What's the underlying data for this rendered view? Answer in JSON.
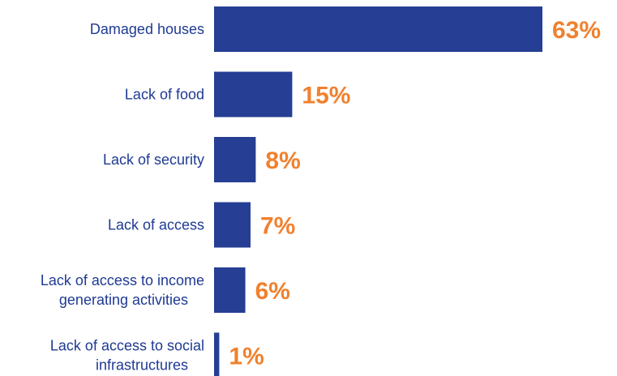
{
  "colors": {
    "bar": "#263e93",
    "value_label": "#f0812e",
    "category_label": "#1f3a93"
  },
  "chart_data": {
    "type": "bar",
    "orientation": "horizontal",
    "title": "",
    "xlabel": "",
    "ylabel": "",
    "categories": [
      [
        "Damaged houses"
      ],
      [
        "Lack of food"
      ],
      [
        "Lack of security"
      ],
      [
        "Lack of access"
      ],
      [
        "Lack of access to income",
        "generating activities"
      ],
      [
        "Lack of access to social",
        "infrastructures"
      ]
    ],
    "values": [
      63,
      15,
      8,
      7,
      6,
      1
    ],
    "value_labels": [
      "63%",
      "15%",
      "8%",
      "7%",
      "6%",
      "1%"
    ],
    "xlim": [
      0,
      63
    ],
    "grid": false,
    "legend": "none"
  }
}
